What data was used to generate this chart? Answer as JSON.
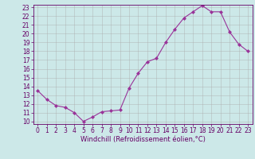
{
  "x": [
    0,
    1,
    2,
    3,
    4,
    5,
    6,
    7,
    8,
    9,
    10,
    11,
    12,
    13,
    14,
    15,
    16,
    17,
    18,
    19,
    20,
    21,
    22,
    23
  ],
  "y": [
    13.5,
    12.5,
    11.8,
    11.6,
    11.0,
    10.0,
    10.5,
    11.1,
    11.2,
    11.3,
    13.8,
    15.5,
    16.8,
    17.2,
    19.0,
    20.5,
    21.8,
    22.5,
    23.2,
    22.5,
    22.5,
    20.2,
    18.8,
    18.0
  ],
  "line_color": "#993399",
  "marker": "D",
  "marker_size": 2.0,
  "bg_color": "#cce8e8",
  "grid_color": "#aaaaaa",
  "xlabel": "Windchill (Refroidissement éolien,°C)",
  "ylabel": "",
  "ylim": [
    10,
    23
  ],
  "xlim": [
    -0.5,
    23.5
  ],
  "yticks": [
    10,
    11,
    12,
    13,
    14,
    15,
    16,
    17,
    18,
    19,
    20,
    21,
    22,
    23
  ],
  "xticks": [
    0,
    1,
    2,
    3,
    4,
    5,
    6,
    7,
    8,
    9,
    10,
    11,
    12,
    13,
    14,
    15,
    16,
    17,
    18,
    19,
    20,
    21,
    22,
    23
  ],
  "tick_fontsize": 5.5,
  "xlabel_fontsize": 6.0,
  "tick_color": "#660066",
  "spine_color": "#660066"
}
